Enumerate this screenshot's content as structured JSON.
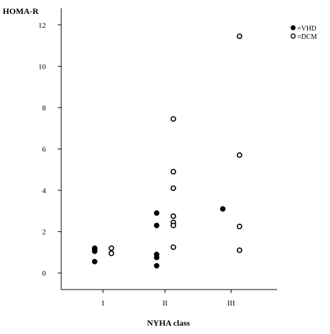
{
  "chart_data": {
    "type": "scatter",
    "ylabel": "HOMA-R",
    "xlabel": "NYHA class",
    "categories": [
      "I",
      "II",
      "III"
    ],
    "ylim": [
      -0.8,
      12.8
    ],
    "y_ticks": [
      "0",
      "2",
      "4",
      "6",
      "8",
      "10",
      "12"
    ],
    "legend_position": "top-right",
    "grid": false,
    "series": [
      {
        "name": "=VHD",
        "marker": "filled-circle",
        "points": [
          {
            "category": "I",
            "y": 1.2
          },
          {
            "category": "I",
            "y": 1.15
          },
          {
            "category": "I",
            "y": 1.05
          },
          {
            "category": "I",
            "y": 0.55
          },
          {
            "category": "II",
            "y": 2.9
          },
          {
            "category": "II",
            "y": 2.3
          },
          {
            "category": "II",
            "y": 0.9
          },
          {
            "category": "II",
            "y": 0.75
          },
          {
            "category": "II",
            "y": 0.35
          },
          {
            "category": "III",
            "y": 3.1
          }
        ]
      },
      {
        "name": "=DCM",
        "marker": "open-circle",
        "points": [
          {
            "category": "I",
            "y": 1.2
          },
          {
            "category": "I",
            "y": 0.95
          },
          {
            "category": "II",
            "y": 7.45
          },
          {
            "category": "II",
            "y": 4.9
          },
          {
            "category": "II",
            "y": 4.1
          },
          {
            "category": "II",
            "y": 2.75
          },
          {
            "category": "II",
            "y": 2.45
          },
          {
            "category": "II",
            "y": 2.3
          },
          {
            "category": "II",
            "y": 1.25
          },
          {
            "category": "III",
            "y": 11.45
          },
          {
            "category": "III",
            "y": 5.7
          },
          {
            "category": "III",
            "y": 2.25
          },
          {
            "category": "III",
            "y": 1.1
          }
        ]
      }
    ]
  }
}
